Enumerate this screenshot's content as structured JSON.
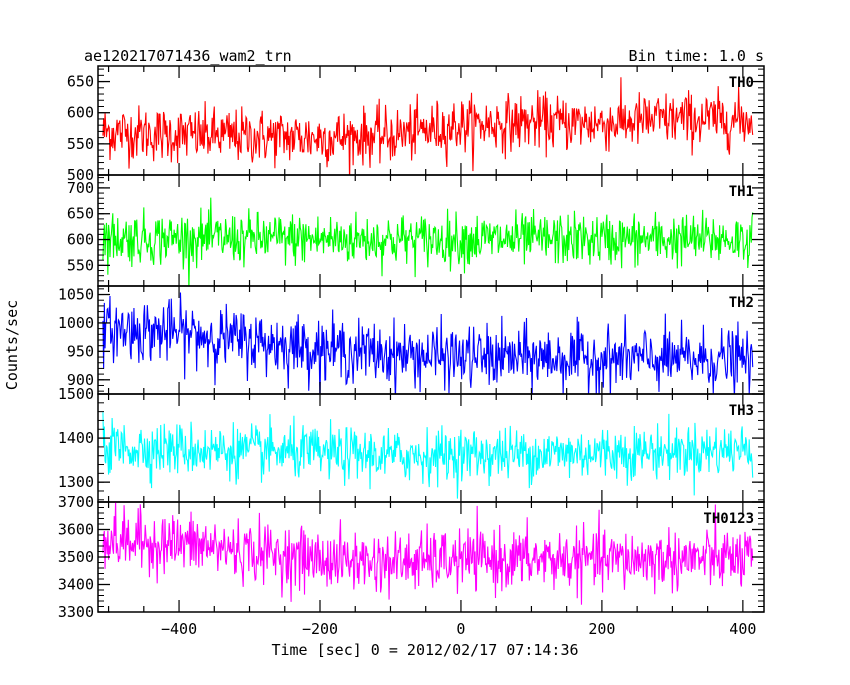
{
  "header": {
    "title": "ae120217071436_wam2_trn",
    "bin_time": "Bin time: 1.0 s"
  },
  "chart_data": {
    "type": "line",
    "title": "ae120217071436_wam2_trn",
    "subtitle": "Bin time: 1.0 s",
    "xlabel": "Time [sec] 0 = 2012/02/17 07:14:36",
    "ylabel": "Counts/sec",
    "xlim": [
      -515,
      430
    ],
    "x_ticks": [
      -400,
      -200,
      0,
      200,
      400
    ],
    "x_tick_labels": [
      "−400",
      "−200",
      "0",
      "200",
      "400"
    ],
    "x_range_data": [
      -508,
      414
    ],
    "bin_time_s": 1.0,
    "series": [
      {
        "name": "TH0",
        "color": "#ff0000",
        "ylim": [
          500,
          675
        ],
        "y_ticks": [
          500,
          550,
          600,
          650
        ],
        "y_tick_labels": [
          "500",
          "550",
          "600",
          "650"
        ],
        "trend": [
          [
            -508,
            570
          ],
          [
            -420,
            565
          ],
          [
            -300,
            562
          ],
          [
            -200,
            560
          ],
          [
            -100,
            563
          ],
          [
            0,
            580
          ],
          [
            100,
            585
          ],
          [
            200,
            583
          ],
          [
            300,
            590
          ],
          [
            414,
            588
          ]
        ],
        "noise_sd": 22
      },
      {
        "name": "TH1",
        "color": "#00ff00",
        "ylim": [
          510,
          725
        ],
        "y_ticks": [
          550,
          600,
          650,
          700
        ],
        "y_tick_labels": [
          "550",
          "600",
          "650",
          "700"
        ],
        "trend": [
          [
            -508,
            603
          ],
          [
            -300,
            602
          ],
          [
            -100,
            600
          ],
          [
            100,
            600
          ],
          [
            300,
            600
          ],
          [
            414,
            601
          ]
        ],
        "noise_sd": 25
      },
      {
        "name": "TH2",
        "color": "#0000ff",
        "ylim": [
          875,
          1065
        ],
        "y_ticks": [
          900,
          950,
          1000,
          1050
        ],
        "y_tick_labels": [
          "900",
          "950",
          "1000",
          "1050"
        ],
        "trend": [
          [
            -508,
            990
          ],
          [
            -400,
            983
          ],
          [
            -300,
            968
          ],
          [
            -200,
            955
          ],
          [
            -100,
            945
          ],
          [
            0,
            940
          ],
          [
            200,
            937
          ],
          [
            414,
            935
          ]
        ],
        "noise_sd": 27
      },
      {
        "name": "TH3",
        "color": "#00ffff",
        "ylim": [
          1255,
          1500
        ],
        "y_ticks": [
          1300,
          1400,
          1500
        ],
        "y_tick_labels": [
          "1300",
          "1400",
          "1500"
        ],
        "trend": [
          [
            -508,
            1380
          ],
          [
            -300,
            1370
          ],
          [
            -100,
            1360
          ],
          [
            100,
            1365
          ],
          [
            300,
            1370
          ],
          [
            414,
            1375
          ]
        ],
        "noise_sd": 30
      },
      {
        "name": "TH0123",
        "color": "#ff00ff",
        "ylim": [
          3300,
          3700
        ],
        "y_ticks": [
          3300,
          3400,
          3500,
          3600,
          3700
        ],
        "y_tick_labels": [
          "3300",
          "3400",
          "3500",
          "3600",
          "3700"
        ],
        "trend": [
          [
            -508,
            3560
          ],
          [
            -400,
            3550
          ],
          [
            -300,
            3520
          ],
          [
            -200,
            3490
          ],
          [
            -100,
            3480
          ],
          [
            0,
            3490
          ],
          [
            200,
            3490
          ],
          [
            414,
            3495
          ]
        ],
        "noise_sd": 55
      }
    ]
  }
}
